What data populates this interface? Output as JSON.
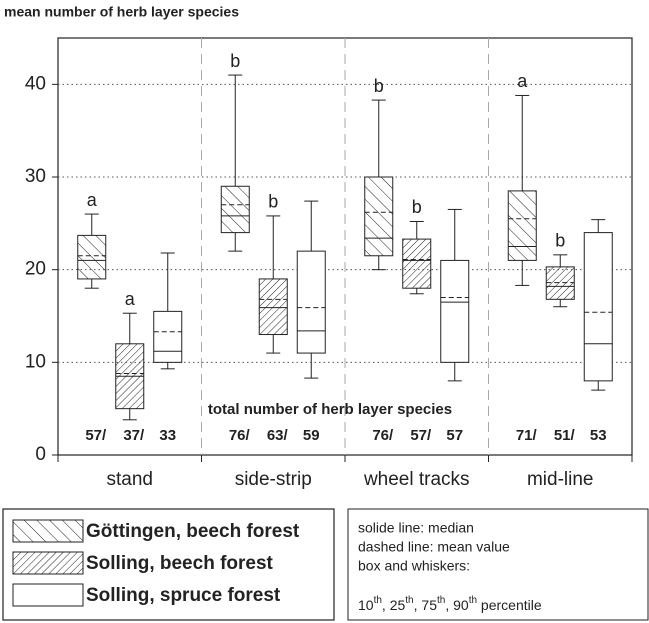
{
  "chart_data": {
    "type": "box",
    "title": "mean number of herb layer species",
    "totals_title": "total number of herb layer species",
    "categories": [
      "stand",
      "side-strip",
      "wheel tracks",
      "mid-line"
    ],
    "ylim": [
      0,
      45
    ],
    "yticks": [
      0,
      10,
      20,
      30,
      40
    ],
    "grid": true,
    "series": [
      {
        "name": "Göttingen, beech forest",
        "hatch": "backslash",
        "values": [
          {
            "whislo": 18,
            "q1": 19,
            "med": 21,
            "q3": 23.7,
            "whishi": 26,
            "mean": 21.5
          },
          {
            "whislo": 22,
            "q1": 24,
            "med": 25.8,
            "q3": 29,
            "whishi": 41,
            "mean": 27
          },
          {
            "whislo": 20,
            "q1": 21.5,
            "med": 23.4,
            "q3": 30,
            "whishi": 38.3,
            "mean": 26.2
          },
          {
            "whislo": 18.3,
            "q1": 21,
            "med": 22.5,
            "q3": 28.5,
            "whishi": 38.8,
            "mean": 25.5
          }
        ],
        "letters": [
          "a",
          "b",
          "b",
          "a"
        ],
        "totals": [
          "57/",
          "76/",
          "76/",
          "71/"
        ]
      },
      {
        "name": "Solling, beech forest",
        "hatch": "slash",
        "values": [
          {
            "whislo": 3.8,
            "q1": 5,
            "med": 8.5,
            "q3": 12,
            "whishi": 15.3,
            "mean": 8.8
          },
          {
            "whislo": 11,
            "q1": 13,
            "med": 15.9,
            "q3": 19,
            "whishi": 25.8,
            "mean": 16.8
          },
          {
            "whislo": 17.4,
            "q1": 18,
            "med": 21,
            "q3": 23.3,
            "whishi": 25.2,
            "mean": 21.1
          },
          {
            "whislo": 16,
            "q1": 16.8,
            "med": 18.2,
            "q3": 20.3,
            "whishi": 21.6,
            "mean": 18.6
          }
        ],
        "letters": [
          "a",
          "b",
          "b",
          "b"
        ],
        "totals": [
          "37/",
          "63/",
          "57/",
          "51/"
        ]
      },
      {
        "name": "Solling, spruce forest",
        "hatch": "none",
        "values": [
          {
            "whislo": 9.3,
            "q1": 10,
            "med": 11.2,
            "q3": 15.5,
            "whishi": 21.8,
            "mean": 13.3
          },
          {
            "whislo": 8.3,
            "q1": 11,
            "med": 13.4,
            "q3": 22,
            "whishi": 27.4,
            "mean": 15.9
          },
          {
            "whislo": 8,
            "q1": 10,
            "med": 16.5,
            "q3": 21,
            "whishi": 26.5,
            "mean": 17
          },
          {
            "whislo": 7,
            "q1": 8,
            "med": 12,
            "q3": 24,
            "whishi": 25.4,
            "mean": 15.4
          }
        ],
        "totals": [
          "33",
          "59",
          "57",
          "53"
        ]
      }
    ],
    "notes": [
      "solide line: median",
      "dashed line: mean value",
      "box and whiskers:"
    ],
    "percentile_parts": [
      {
        "text": "10"
      },
      {
        "sup": "th"
      },
      {
        "text": ", 25"
      },
      {
        "sup": "th"
      },
      {
        "text": ", 75"
      },
      {
        "sup": "th"
      },
      {
        "text": ", 90"
      },
      {
        "sup": "th"
      },
      {
        "text": " percentile"
      }
    ]
  }
}
